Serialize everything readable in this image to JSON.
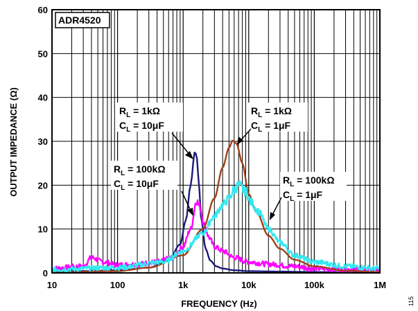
{
  "chart_data": {
    "type": "line",
    "title": "ADR4520",
    "xlabel": "FREQUENCY (Hz)",
    "ylabel": "OUTPUT IMPEDANCE (Ω)",
    "xscale": "log",
    "xlim": [
      10,
      1000000
    ],
    "ylim": [
      0,
      60
    ],
    "grid": true,
    "x_tick_labels": [
      "10",
      "100",
      "1k",
      "10k",
      "100k",
      "1M"
    ],
    "x_tick_values": [
      10,
      100,
      1000,
      10000,
      100000,
      1000000
    ],
    "y_ticks": [
      0,
      10,
      20,
      30,
      40,
      50,
      60
    ],
    "figure_id": "115",
    "series": [
      {
        "color": "#1a1a7a",
        "values_x": [
          10,
          30,
          100,
          300,
          600,
          900,
          1100,
          1300,
          1500,
          1600,
          1700,
          1900,
          2200,
          2600,
          3200,
          4000,
          6000,
          10000,
          30000,
          100000,
          1000000
        ],
        "values_y": [
          0.3,
          0.4,
          0.6,
          1.2,
          2.8,
          6.5,
          12,
          20,
          27.5,
          27,
          22,
          12,
          5.5,
          2.8,
          1.5,
          1,
          0.6,
          0.4,
          0.3,
          0.2,
          0.1
        ]
      },
      {
        "color": "#ff00ff",
        "noisy": true,
        "values_x": [
          10,
          30,
          40,
          60,
          100,
          200,
          400,
          700,
          1000,
          1300,
          1600,
          1800,
          2100,
          2500,
          3000,
          4000,
          6000,
          10000,
          20000,
          50000,
          100000,
          300000,
          1000000
        ],
        "values_y": [
          1,
          1.5,
          3.5,
          2.5,
          1.8,
          2,
          2.5,
          3.5,
          6,
          10,
          16.5,
          15,
          11,
          8,
          6,
          5,
          3.5,
          2.5,
          2,
          1.5,
          1,
          0.8,
          0.6
        ]
      },
      {
        "color": "#a0401a",
        "values_x": [
          10,
          100,
          300,
          1000,
          2000,
          3000,
          4000,
          5000,
          5700,
          6500,
          8000,
          10000,
          13000,
          20000,
          30000,
          50000,
          100000,
          300000,
          1000000
        ],
        "values_y": [
          0.1,
          0.4,
          1.2,
          4,
          10,
          17,
          24,
          28.5,
          30.2,
          29.5,
          25,
          18,
          14,
          8.5,
          5.5,
          3,
          1.5,
          0.5,
          0.2
        ]
      },
      {
        "color": "#33e8f0",
        "noisy": true,
        "values_x": [
          10,
          100,
          500,
          1000,
          2000,
          3000,
          4000,
          5000,
          6000,
          7000,
          9000,
          11000,
          14000,
          20000,
          30000,
          50000,
          100000,
          300000,
          1000000
        ],
        "values_y": [
          0.8,
          1.2,
          2.5,
          5,
          9,
          13,
          15.5,
          17,
          19,
          20,
          18.5,
          16,
          14,
          10,
          7,
          4,
          2.5,
          1.5,
          1
        ]
      }
    ],
    "annotations": [
      {
        "line1_main": "R",
        "line1_sub": "L",
        "line1_rest": " = 1kΩ",
        "line2_main": "C",
        "line2_sub": "L",
        "line2_rest": " = 10μF"
      },
      {
        "line1_main": "R",
        "line1_sub": "L",
        "line1_rest": " = 1kΩ",
        "line2_main": "C",
        "line2_sub": "L",
        "line2_rest": " = 1μF"
      },
      {
        "line1_main": "R",
        "line1_sub": "L",
        "line1_rest": " = 100kΩ",
        "line2_main": "C",
        "line2_sub": "L",
        "line2_rest": " = 10μF"
      },
      {
        "line1_main": "R",
        "line1_sub": "L",
        "line1_rest": " = 100kΩ",
        "line2_main": "C",
        "line2_sub": "L",
        "line2_rest": " = 1μF"
      }
    ]
  }
}
